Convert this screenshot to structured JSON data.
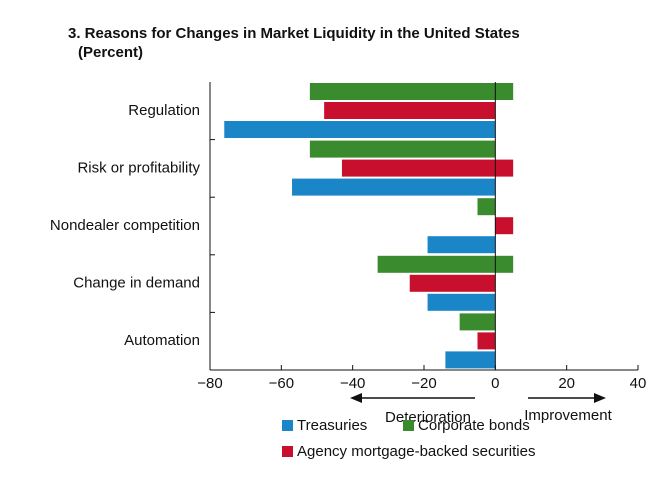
{
  "chart_data": {
    "type": "bar",
    "orientation": "horizontal",
    "title": "3. Reasons for Changes in Market Liquidity in the United States",
    "subtitle": "(Percent)",
    "categories": [
      "Regulation",
      "Risk or profitability",
      "Nondealer competition",
      "Change in demand",
      "Automation"
    ],
    "series": [
      {
        "name": "Treasuries",
        "color": "#1a86c8",
        "values": [
          [
            -76,
            0
          ],
          [
            -57,
            0
          ],
          [
            -19,
            0
          ],
          [
            -19,
            0
          ],
          [
            -14,
            0
          ]
        ]
      },
      {
        "name": "Corporate bonds",
        "color": "#3a8a2e",
        "values": [
          [
            -52,
            5
          ],
          [
            -52,
            0
          ],
          [
            -5,
            0
          ],
          [
            -33,
            5
          ],
          [
            -10,
            0
          ]
        ]
      },
      {
        "name": "Agency mortgage-backed securities",
        "color": "#c8102e",
        "values": [
          [
            -48,
            0
          ],
          [
            -43,
            5
          ],
          [
            0,
            5
          ],
          [
            -24,
            0
          ],
          [
            -5,
            0
          ]
        ]
      }
    ],
    "bar_order": [
      1,
      2,
      0
    ],
    "xlim": [
      -80,
      40
    ],
    "xticks": [
      {
        "value": -80,
        "label": "−80"
      },
      {
        "value": -60,
        "label": "−60"
      },
      {
        "value": -40,
        "label": "−40"
      },
      {
        "value": -20,
        "label": "−20"
      },
      0,
      20,
      40
    ],
    "annotations": [
      "Deterioration",
      "Improvement"
    ],
    "grid": false
  }
}
